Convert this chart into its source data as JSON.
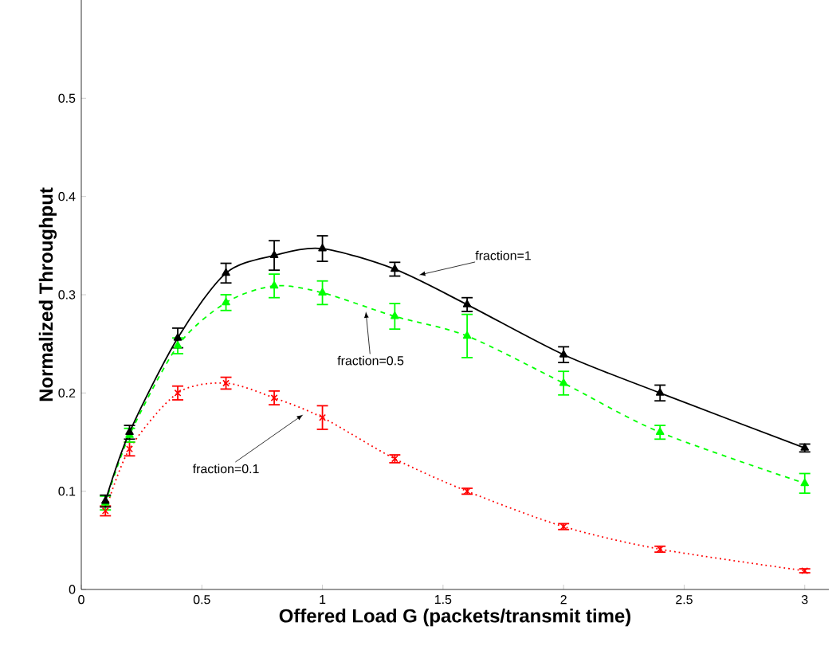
{
  "chart_data": {
    "type": "line",
    "xlabel": "Offered Load G (packets/transmit time)",
    "ylabel": "Normalized Throughput",
    "x": [
      0.1,
      0.2,
      0.4,
      0.6,
      0.8,
      1,
      1.3,
      1.6,
      2,
      2.4,
      3
    ],
    "xlim": [
      0,
      3.1
    ],
    "xticks": [
      0,
      0.5,
      1,
      1.5,
      2,
      2.5,
      3
    ],
    "ylim": [
      0,
      0.6
    ],
    "yticks": [
      0,
      0.1,
      0.2,
      0.3,
      0.4,
      0.5
    ],
    "grid": false,
    "annotations": [
      {
        "text": "fraction=1",
        "x": 1.4,
        "y": 0.32
      },
      {
        "text": "fraction=0.5",
        "x": 1.18,
        "y": 0.283
      },
      {
        "text": "fraction=0.1",
        "x": 0.92,
        "y": 0.178
      }
    ],
    "series": [
      {
        "color": "#000000",
        "marker": "triangle",
        "line_style": "solid",
        "values": [
          0.09,
          0.16,
          0.256,
          0.322,
          0.34,
          0.347,
          0.326,
          0.29,
          0.239,
          0.2,
          0.144
        ],
        "errors": [
          0.006,
          0.007,
          0.01,
          0.01,
          0.015,
          0.013,
          0.007,
          0.007,
          0.008,
          0.008,
          0.004
        ]
      },
      {
        "color": "#00ff00",
        "marker": "triangle",
        "line_style": "dashed",
        "values": [
          0.088,
          0.157,
          0.248,
          0.292,
          0.309,
          0.302,
          0.278,
          0.258,
          0.21,
          0.16,
          0.108
        ],
        "errors": [
          0.007,
          0.007,
          0.008,
          0.008,
          0.012,
          0.012,
          0.013,
          0.022,
          0.012,
          0.007,
          0.01
        ]
      },
      {
        "color": "#ff0000",
        "marker": "cross",
        "line_style": "dotted",
        "values": [
          0.08,
          0.143,
          0.2,
          0.21,
          0.195,
          0.175,
          0.133,
          0.1,
          0.064,
          0.041,
          0.019
        ],
        "errors": [
          0.005,
          0.007,
          0.007,
          0.006,
          0.007,
          0.012,
          0.004,
          0.003,
          0.003,
          0.003,
          0.002
        ]
      }
    ]
  }
}
